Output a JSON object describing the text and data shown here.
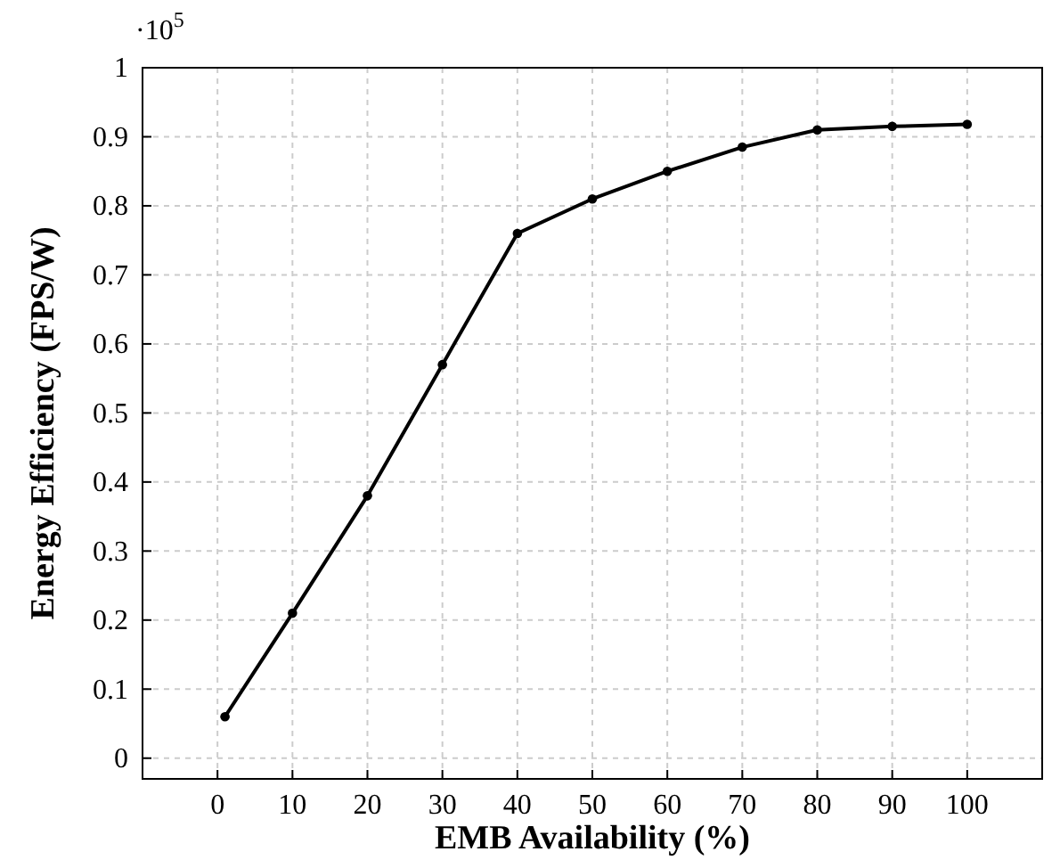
{
  "chart_data": {
    "type": "line",
    "xlabel": "EMB Availability (%)",
    "ylabel": "Energy Efficiency (FPS/W)",
    "annotations": [
      "·10$^{5}$"
    ],
    "x": [
      1,
      10,
      20,
      30,
      40,
      50,
      60,
      70,
      80,
      90,
      100
    ],
    "series": [
      {
        "color": "#000000",
        "values": [
          0.06,
          0.21,
          0.38,
          0.57,
          0.76,
          0.81,
          0.85,
          0.885,
          0.91,
          0.915,
          0.918
        ]
      }
    ],
    "xlim": [
      -10,
      110
    ],
    "ylim": [
      -0.03,
      1
    ],
    "xticks": [
      0,
      10,
      20,
      30,
      40,
      50,
      60,
      70,
      80,
      90,
      100
    ],
    "yticks": [
      0,
      0.1,
      0.2,
      0.3,
      0.4,
      0.5,
      0.6,
      0.7,
      0.8,
      0.9,
      1
    ],
    "grid": true,
    "marker": "circle",
    "line_style": "solid"
  }
}
